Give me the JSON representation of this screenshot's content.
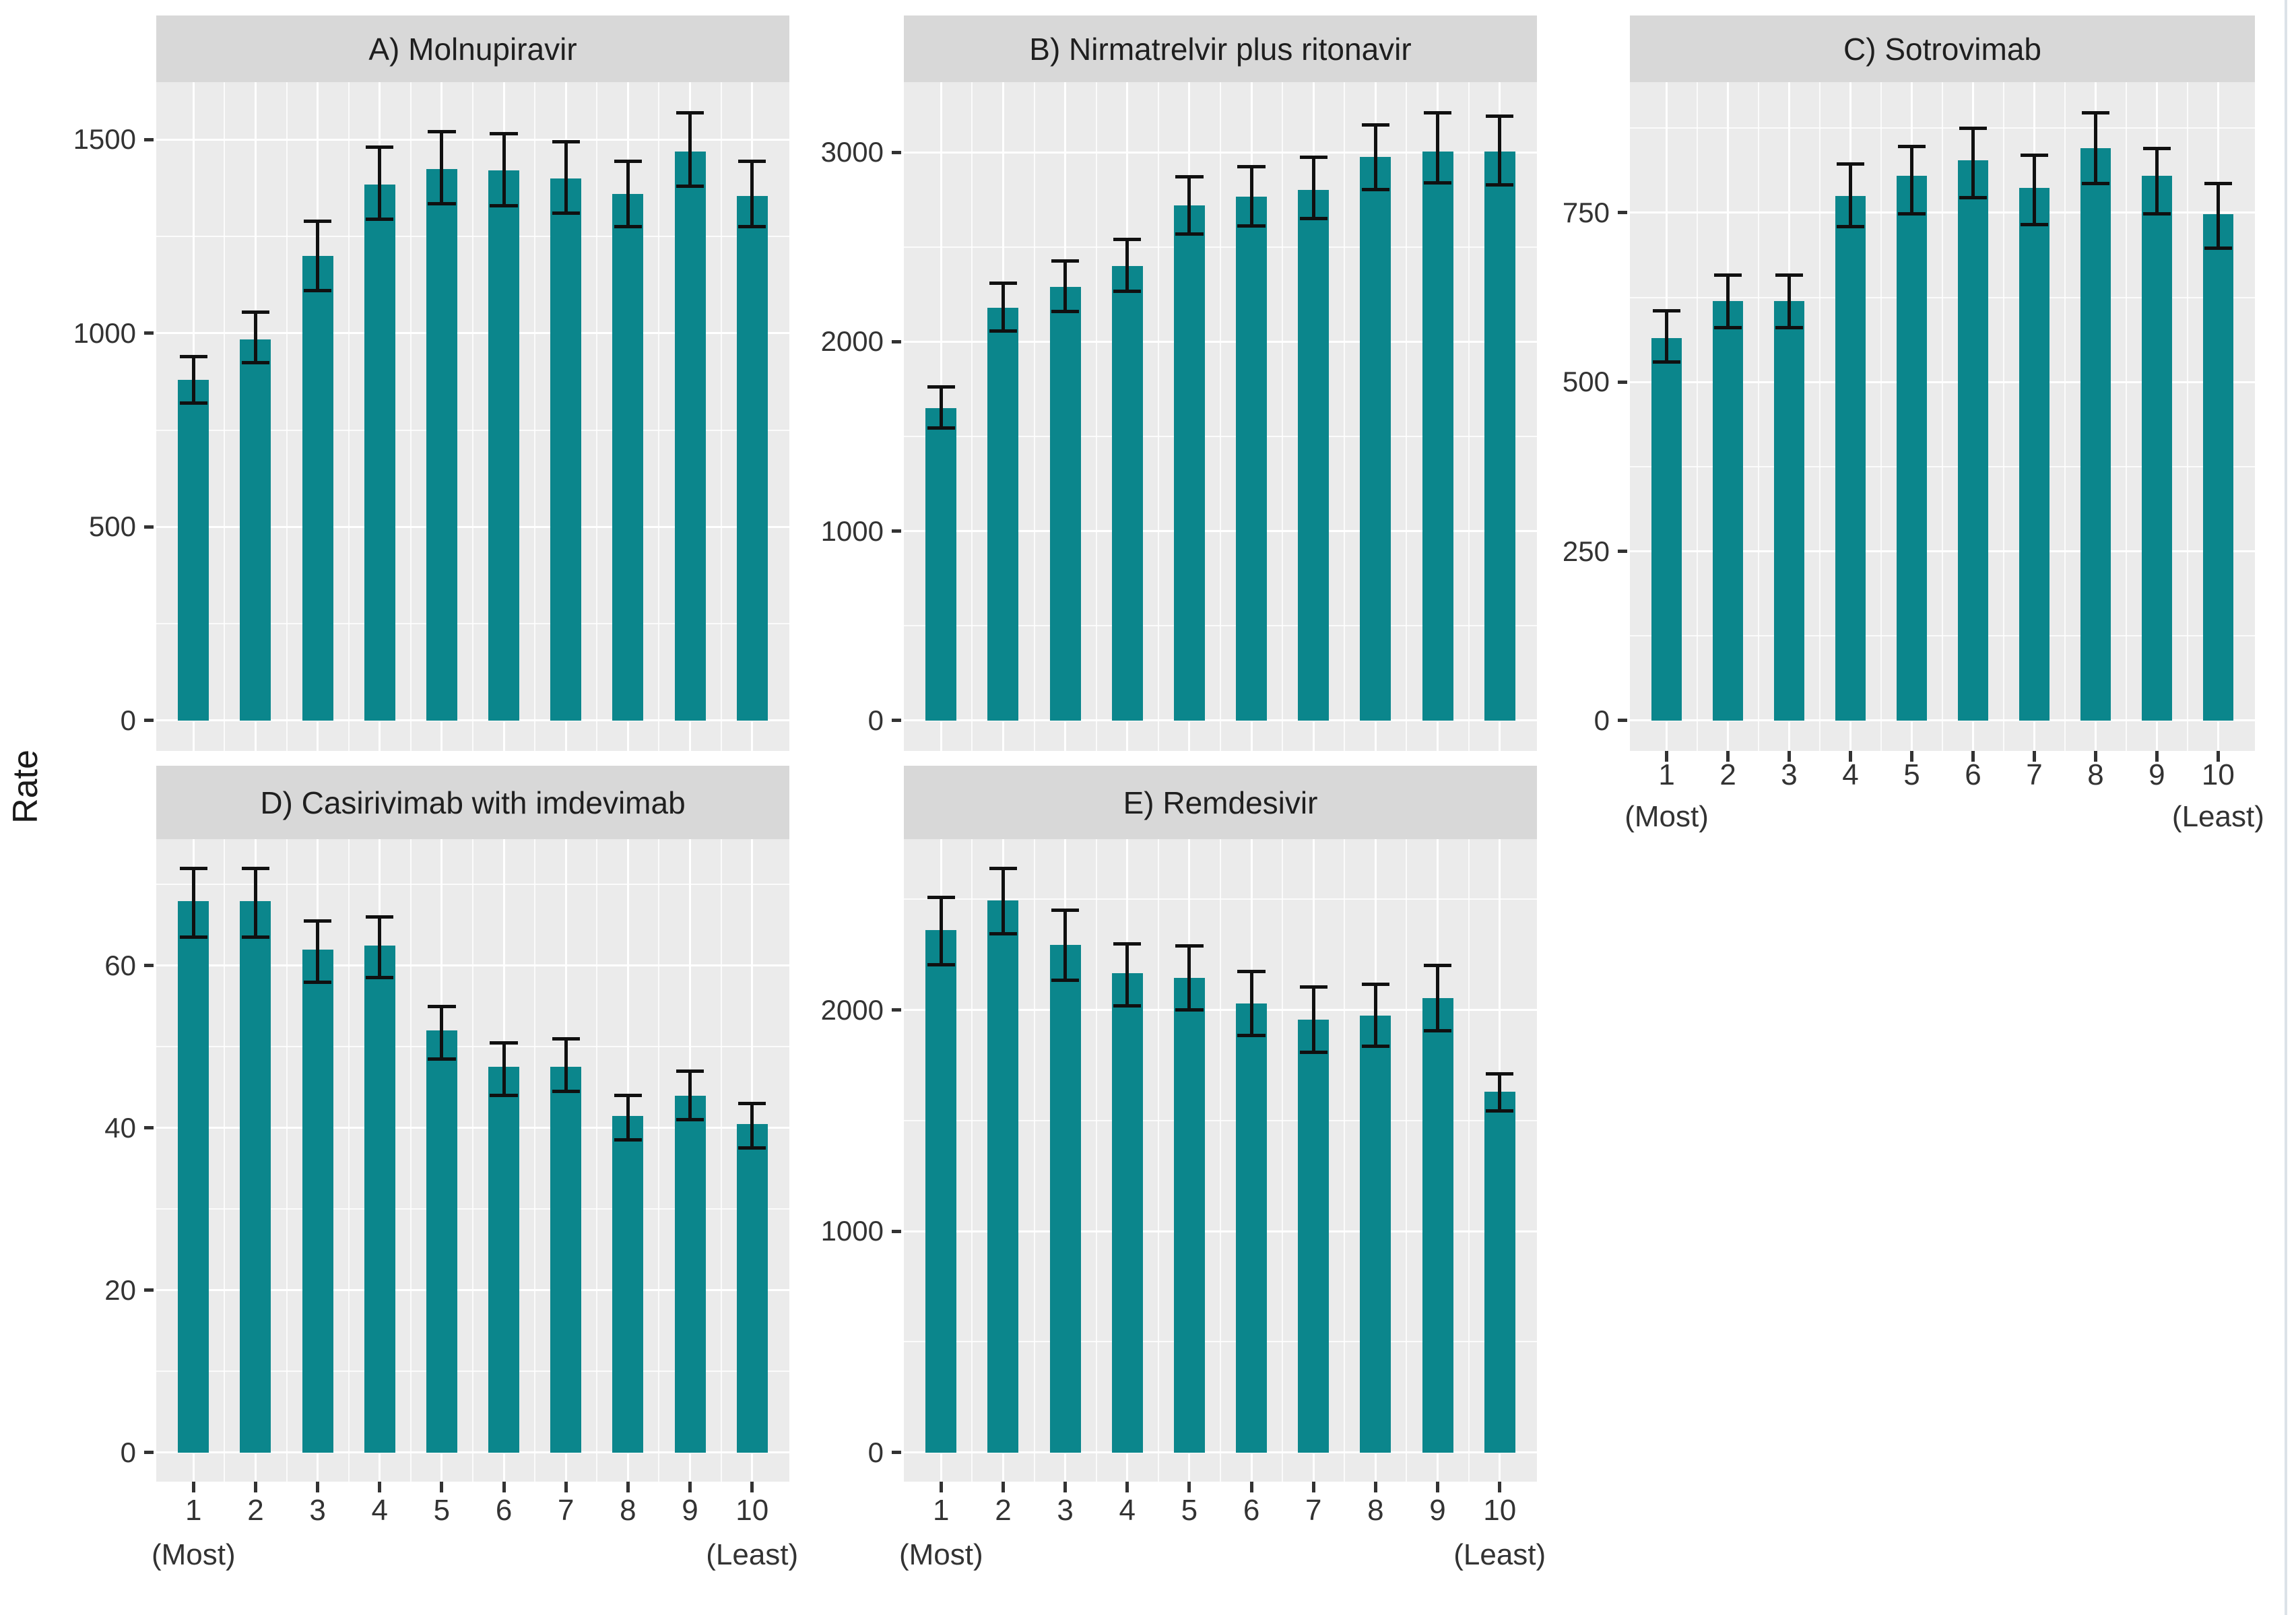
{
  "figure": {
    "y_axis_title": "Rate"
  },
  "theme": {
    "bar_color": "#0B868C",
    "panel_bg": "#EBEBEB",
    "strip_bg": "#D8D8D8",
    "grid_color": "#FFFFFF",
    "tick_text_color": "#333333",
    "strip_text_color": "#1F1F1F",
    "error_bar_color": "#101010",
    "right_edge_line_color": "#DCE2E8"
  },
  "chart_data": {
    "type": "bar",
    "title": "",
    "ylabel": "Rate",
    "xlabel": "",
    "grid": true,
    "legend_position": "none",
    "categories": [
      "1",
      "2",
      "3",
      "4",
      "5",
      "6",
      "7",
      "8",
      "9",
      "10"
    ],
    "x_first_sublabel": "(Most)",
    "x_last_sublabel": "(Least)",
    "error_bars": true,
    "panels": [
      {
        "label": "A) Molnupiravir",
        "col": 0,
        "row": 0,
        "show_x_axis": false,
        "ylim": [
          0,
          1650
        ],
        "yticks": [
          0,
          500,
          1000,
          1500
        ],
        "yminor": [
          250,
          750,
          1250
        ],
        "values": [
          880,
          985,
          1200,
          1385,
          1425,
          1420,
          1400,
          1360,
          1470,
          1355
        ],
        "error_low": [
          820,
          925,
          1110,
          1295,
          1335,
          1330,
          1310,
          1275,
          1380,
          1275
        ],
        "error_high": [
          940,
          1055,
          1290,
          1480,
          1520,
          1515,
          1495,
          1445,
          1570,
          1445
        ]
      },
      {
        "label": "B) Nirmatrelvir plus ritonavir",
        "col": 1,
        "row": 0,
        "show_x_axis": false,
        "ylim": [
          0,
          3370
        ],
        "yticks": [
          0,
          1000,
          2000,
          3000
        ],
        "yminor": [
          500,
          1500,
          2500
        ],
        "values": [
          1650,
          2180,
          2290,
          2400,
          2720,
          2765,
          2800,
          2975,
          3005,
          3005
        ],
        "error_low": [
          1545,
          2055,
          2160,
          2265,
          2570,
          2610,
          2650,
          2805,
          2840,
          2830
        ],
        "error_high": [
          1760,
          2310,
          2425,
          2540,
          2870,
          2925,
          2975,
          3145,
          3210,
          3190
        ]
      },
      {
        "label": "C) Sotrovimab",
        "col": 2,
        "row": 0,
        "show_x_axis": true,
        "ylim": [
          0,
          945
        ],
        "yticks": [
          0,
          250,
          500,
          750
        ],
        "yminor": [
          125,
          375,
          625,
          875
        ],
        "values": [
          565,
          620,
          620,
          775,
          805,
          828,
          787,
          845,
          805,
          748
        ],
        "error_low": [
          530,
          580,
          580,
          730,
          748,
          772,
          733,
          793,
          748,
          698
        ],
        "error_high": [
          605,
          658,
          658,
          822,
          848,
          875,
          835,
          898,
          845,
          793
        ]
      },
      {
        "label": "D) Casirivimab with imdevimab",
        "col": 0,
        "row": 1,
        "show_x_axis": true,
        "ylim": [
          0,
          76
        ],
        "yticks": [
          0,
          20,
          40,
          60
        ],
        "yminor": [
          10,
          30,
          50,
          70
        ],
        "values": [
          68,
          68,
          62,
          62.5,
          52,
          47.5,
          47.5,
          41.5,
          44,
          40.5
        ],
        "error_low": [
          63.5,
          63.5,
          58,
          58.5,
          48.5,
          44,
          44.5,
          38.5,
          41,
          37.5
        ],
        "error_high": [
          72,
          72,
          65.5,
          66,
          55,
          50.5,
          51,
          44,
          47,
          43
        ]
      },
      {
        "label": "E) Remdesivir",
        "col": 1,
        "row": 1,
        "show_x_axis": true,
        "ylim": [
          0,
          2770
        ],
        "yticks": [
          0,
          1000,
          2000
        ],
        "yminor": [
          500,
          1500,
          2500
        ],
        "values": [
          2360,
          2495,
          2295,
          2165,
          2145,
          2030,
          1955,
          1975,
          2055,
          1630
        ],
        "error_low": [
          2205,
          2345,
          2135,
          2020,
          2000,
          1885,
          1810,
          1835,
          1905,
          1545
        ],
        "error_high": [
          2510,
          2640,
          2450,
          2300,
          2290,
          2175,
          2105,
          2115,
          2200,
          1710
        ]
      }
    ]
  }
}
